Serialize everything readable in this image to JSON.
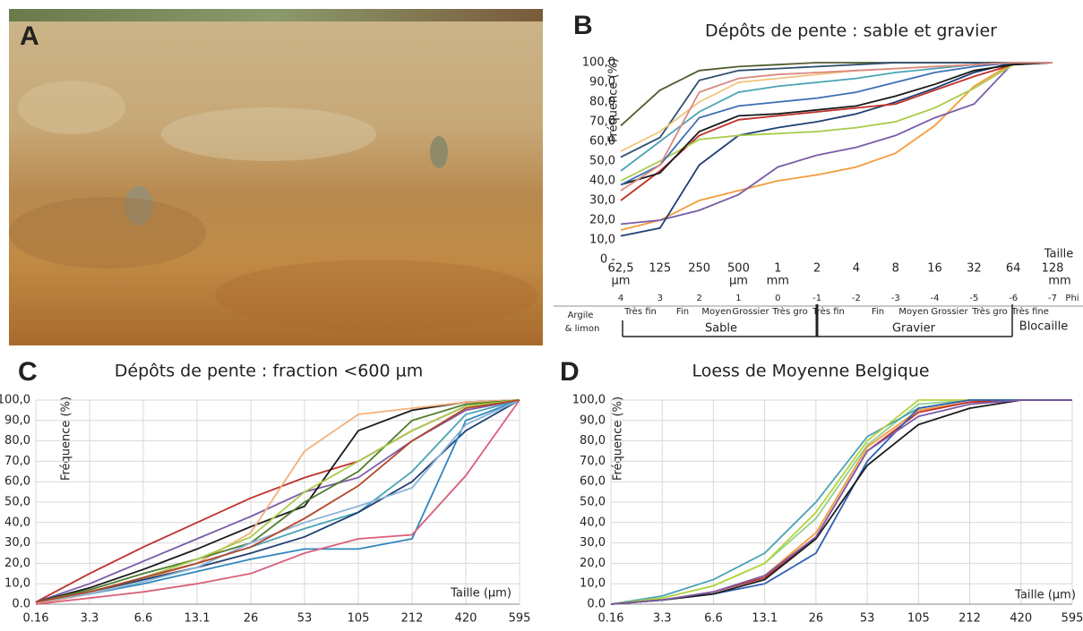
{
  "panel_a": {
    "panel": "A"
  },
  "chart_data": [
    {
      "type": "line",
      "panel": "B",
      "title": "Dépôts de pente : sable et gravier",
      "ylabel": "Fréquence (%)",
      "xlabel": "Taille",
      "categories": [
        "62,5",
        "125",
        "250",
        "500",
        "1",
        "2",
        "4",
        "8",
        "16",
        "32",
        "64",
        "128"
      ],
      "x_units": [
        "µm",
        "µm",
        "mm",
        "mm"
      ],
      "phi": [
        "4",
        "3",
        "2",
        "1",
        "0",
        "-1",
        "-2",
        "-3",
        "-4",
        "-5",
        "-6",
        "-7"
      ],
      "phi_unit": "Phi",
      "classes": [
        "Très fin",
        "Fin",
        "Moyen",
        "Grossier",
        "Très gro",
        "Très fin",
        "Fin",
        "Moyen",
        "Grossier",
        "Très gro",
        "Très fine"
      ],
      "groups": [
        "Argile",
        "& limon",
        "Sable",
        "Gravier",
        "Blocaille"
      ],
      "ylim": [
        0,
        100
      ],
      "yticks": [
        {
          "value": 0,
          "label": "0 -"
        },
        {
          "value": 10,
          "label": "10,0"
        },
        {
          "value": 20,
          "label": "20,0"
        },
        {
          "value": 30,
          "label": "30,0"
        },
        {
          "value": 40,
          "label": "40,0"
        },
        {
          "value": 50,
          "label": "50,0"
        },
        {
          "value": 60,
          "label": "60,0"
        },
        {
          "value": 70,
          "label": "70,0"
        },
        {
          "value": 80,
          "label": "80,0"
        },
        {
          "value": 90,
          "label": "90,0"
        },
        {
          "value": 100,
          "label": "100,0"
        }
      ],
      "grid": false,
      "series": [
        {
          "color": "#4f5d2f",
          "values": [
            68,
            86,
            96,
            98,
            99,
            100,
            100,
            100,
            100,
            100,
            100,
            100
          ]
        },
        {
          "color": "#2f4f6f",
          "values": [
            52,
            62,
            91,
            96,
            97,
            98,
            99,
            100,
            100,
            100,
            100,
            100
          ]
        },
        {
          "color": "#4aa3b5",
          "values": [
            45,
            60,
            75,
            85,
            88,
            90,
            92,
            95,
            97,
            99,
            100,
            100
          ]
        },
        {
          "color": "#f39c3c",
          "values": [
            15,
            20,
            30,
            35,
            40,
            43,
            47,
            54,
            68,
            88,
            100,
            100
          ]
        },
        {
          "color": "#7a5ca8",
          "values": [
            18,
            20,
            25,
            33,
            47,
            53,
            57,
            63,
            72,
            79,
            100,
            100
          ]
        },
        {
          "color": "#1f3f73",
          "values": [
            12,
            16,
            48,
            63,
            67,
            70,
            74,
            80,
            87,
            95,
            100,
            100
          ]
        },
        {
          "color": "#c0302a",
          "values": [
            30,
            45,
            63,
            71,
            73,
            75,
            77,
            79,
            86,
            93,
            99,
            100
          ]
        },
        {
          "color": "#a8cc4a",
          "values": [
            40,
            50,
            61,
            63,
            64,
            65,
            67,
            70,
            77,
            87,
            99,
            100
          ]
        },
        {
          "color": "#1a1a1a",
          "values": [
            38,
            44,
            65,
            73,
            74,
            76,
            78,
            83,
            89,
            96,
            99,
            100
          ]
        },
        {
          "color": "#f2c27a",
          "values": [
            55,
            65,
            80,
            90,
            92,
            94,
            96,
            97,
            98,
            99,
            100,
            100
          ]
        },
        {
          "color": "#3d6fb5",
          "values": [
            38,
            48,
            72,
            78,
            80,
            82,
            85,
            90,
            95,
            98,
            100,
            100
          ]
        },
        {
          "color": "#d9897f",
          "values": [
            35,
            48,
            85,
            92,
            94,
            95,
            96,
            97,
            98,
            99,
            100,
            100
          ]
        }
      ]
    },
    {
      "type": "line",
      "panel": "C",
      "title": "Dépôts de pente : fraction <600 µm",
      "ylabel": "Fréquence (%)",
      "xlabel": "Taille (µm)",
      "categories": [
        "0.16",
        "3.3",
        "6.6",
        "13.1",
        "26",
        "53",
        "105",
        "212",
        "420",
        "595"
      ],
      "ylim": [
        0,
        100
      ],
      "yticks": [
        {
          "value": 0,
          "label": "0.0"
        },
        {
          "value": 10,
          "label": "10,0"
        },
        {
          "value": 20,
          "label": "20,0"
        },
        {
          "value": 30,
          "label": "30,0"
        },
        {
          "value": 40,
          "label": "40,0"
        },
        {
          "value": 50,
          "label": "50,0"
        },
        {
          "value": 60,
          "label": "60,0"
        },
        {
          "value": 70,
          "label": "70,0"
        },
        {
          "value": 80,
          "label": "80,0"
        },
        {
          "value": 90,
          "label": "90,0"
        },
        {
          "value": 100,
          "label": "100,0"
        }
      ],
      "grid": true,
      "series": [
        {
          "color": "#c0302a",
          "values": [
            1,
            15,
            28,
            40,
            52,
            62,
            70,
            85,
            97,
            100
          ]
        },
        {
          "color": "#7a5ca8",
          "values": [
            1,
            10,
            21,
            32,
            43,
            55,
            62,
            80,
            95,
            100
          ]
        },
        {
          "color": "#1a1a1a",
          "values": [
            1,
            8,
            17,
            27,
            38,
            48,
            85,
            95,
            99,
            100
          ]
        },
        {
          "color": "#f2b27a",
          "values": [
            0,
            5,
            12,
            20,
            35,
            75,
            93,
            96,
            99,
            100
          ]
        },
        {
          "color": "#4f7d2f",
          "values": [
            1,
            7,
            15,
            22,
            30,
            50,
            65,
            90,
            98,
            100
          ]
        },
        {
          "color": "#4aa3b5",
          "values": [
            1,
            6,
            13,
            20,
            28,
            37,
            45,
            65,
            93,
            100
          ]
        },
        {
          "color": "#1f3f73",
          "values": [
            1,
            6,
            12,
            18,
            25,
            33,
            45,
            60,
            85,
            100
          ]
        },
        {
          "color": "#a8cc4a",
          "values": [
            1,
            6,
            13,
            22,
            33,
            55,
            70,
            85,
            97,
            100
          ]
        },
        {
          "color": "#2f86c0",
          "values": [
            1,
            5,
            10,
            16,
            22,
            27,
            27,
            32,
            90,
            100
          ]
        },
        {
          "color": "#d9607a",
          "values": [
            0,
            3,
            6,
            10,
            15,
            25,
            32,
            34,
            63,
            100
          ]
        },
        {
          "color": "#8ab4d8",
          "values": [
            1,
            5,
            11,
            18,
            30,
            40,
            48,
            57,
            88,
            100
          ]
        },
        {
          "color": "#b5452a",
          "values": [
            1,
            6,
            13,
            20,
            28,
            42,
            58,
            80,
            96,
            100
          ]
        }
      ]
    },
    {
      "type": "line",
      "panel": "D",
      "title": "Loess de Moyenne Belgique",
      "ylabel": "Fréquence (%)",
      "xlabel": "Taille (µm)",
      "categories": [
        "0.16",
        "3.3",
        "6.6",
        "13.1",
        "26",
        "53",
        "105",
        "212",
        "420",
        "595"
      ],
      "ylim": [
        0,
        100
      ],
      "yticks": [
        {
          "value": 0,
          "label": "0.0"
        },
        {
          "value": 10,
          "label": "10,0"
        },
        {
          "value": 20,
          "label": "20,0"
        },
        {
          "value": 30,
          "label": "30,0"
        },
        {
          "value": 40,
          "label": "40,0"
        },
        {
          "value": 50,
          "label": "50,0"
        },
        {
          "value": 60,
          "label": "60,0"
        },
        {
          "value": 70,
          "label": "70,0"
        },
        {
          "value": 80,
          "label": "80,0"
        },
        {
          "value": 90,
          "label": "90,0"
        },
        {
          "value": 100,
          "label": "100,0"
        }
      ],
      "grid": true,
      "series": [
        {
          "color": "#8fd08f",
          "values": [
            0,
            3,
            9,
            20,
            42,
            78,
            98,
            100,
            100,
            100
          ]
        },
        {
          "color": "#4aa3b5",
          "values": [
            0,
            4,
            12,
            25,
            50,
            82,
            96,
            100,
            100,
            100
          ]
        },
        {
          "color": "#b5d43a",
          "values": [
            0,
            3,
            9,
            20,
            45,
            80,
            100,
            100,
            100,
            100
          ]
        },
        {
          "color": "#f39c3c",
          "values": [
            0,
            2,
            6,
            14,
            35,
            77,
            95,
            99,
            100,
            100
          ]
        },
        {
          "color": "#c0302a",
          "values": [
            0,
            2,
            6,
            13,
            33,
            75,
            94,
            99,
            100,
            100
          ]
        },
        {
          "color": "#2f5fb0",
          "values": [
            0,
            2,
            5,
            10,
            25,
            70,
            96,
            100,
            100,
            100
          ]
        },
        {
          "color": "#1a1a1a",
          "values": [
            0,
            2,
            5,
            12,
            32,
            68,
            88,
            96,
            100,
            100
          ]
        },
        {
          "color": "#7a5ca8",
          "values": [
            0,
            2,
            6,
            14,
            33,
            75,
            92,
            98,
            100,
            100
          ]
        }
      ]
    }
  ]
}
